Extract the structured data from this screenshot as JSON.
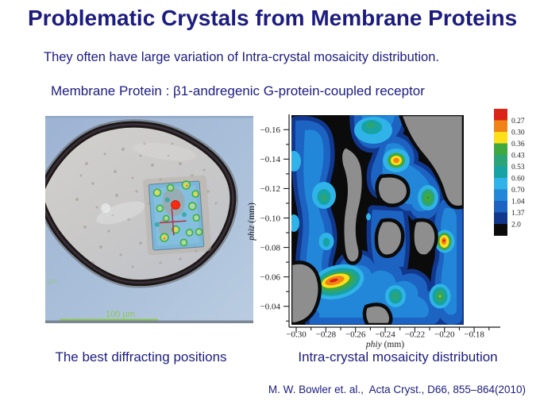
{
  "slide": {
    "title": "Problematic Crystals from Membrane Proteins",
    "subtitle": "They often have large variation of Intra-crystal mosaicity distribution.",
    "protein_line": "Membrane Protein : β1-andregenic G-protein-coupled receptor",
    "captions": {
      "left": "The best diffracting positions",
      "right": "Intra-crystal mosaicity distribution"
    },
    "citation": "M. W. Bowler et. al.,  Acta Cryst., D66, 855–864(2010)"
  },
  "photo": {
    "description": "Optical micrograph of a membrane-protein crystal mounted in a loop, overlaid with a diffraction heatmap, red beam marker and crosshair",
    "scale_bar_label": "100 µm"
  },
  "chart_data": {
    "type": "heatmap",
    "title": "Intra-crystal mosaicity distribution",
    "xlabel": "phiy (mm)",
    "ylabel": "phiz (mm)",
    "xlabel_var": "phiy",
    "xlabel_unit": " (mm)",
    "ylabel_var": "phiz",
    "ylabel_unit": " (mm)",
    "x_ticks": [
      "−0.30",
      "−0.28",
      "−0.26",
      "−0.24",
      "−0.22",
      "−0.20",
      "−0.18"
    ],
    "y_ticks": [
      "−0.16",
      "−0.14",
      "−0.12",
      "−0.10",
      "−0.08",
      "−0.06",
      "−0.04"
    ],
    "xlim": [
      -0.305,
      -0.188
    ],
    "ylim": [
      -0.171,
      -0.028
    ],
    "grid": false,
    "legend_position": "right",
    "legend_labels": [
      "0.27",
      "0.30",
      "0.36",
      "0.43",
      "0.53",
      "0.60",
      "0.70",
      "1.04",
      "1.37",
      "2.0"
    ],
    "legend_colors": [
      "#da2418",
      "#f08218",
      "#ffdf1a",
      "#3fa83f",
      "#2ba578",
      "#17a3a3",
      "#2fb3e8",
      "#2287d8",
      "#1c63c2",
      "#12388e",
      "#0b0b0b"
    ],
    "field_level_note": "bulk of crystal ~0.70–2.0 (blue shades), >2.0 black, gray = unmeasured",
    "hotspots": [
      {
        "phiy": -0.269,
        "phiz": -0.06,
        "approx_min_mosaicity": 0.27,
        "note": "best region, red/orange core"
      },
      {
        "phiy": -0.234,
        "phiz": -0.141,
        "approx_min_mosaicity": 0.29,
        "note": "orange core"
      },
      {
        "phiy": -0.201,
        "phiz": -0.085,
        "approx_min_mosaicity": 0.28,
        "note": "orange/red core"
      },
      {
        "phiy": -0.213,
        "phiz": -0.116,
        "approx_min_mosaicity": 0.4,
        "note": "green core"
      },
      {
        "phiy": -0.203,
        "phiz": -0.048,
        "approx_min_mosaicity": 0.4,
        "note": "green core"
      },
      {
        "phiy": -0.232,
        "phiz": -0.049,
        "approx_min_mosaicity": 0.48,
        "note": "teal core"
      },
      {
        "phiy": -0.252,
        "phiz": -0.163,
        "approx_min_mosaicity": 0.48,
        "note": "teal core at top edge"
      },
      {
        "phiy": -0.281,
        "phiz": -0.116,
        "approx_min_mosaicity": 0.55,
        "note": "teal core"
      },
      {
        "phiy": -0.28,
        "phiz": -0.085,
        "approx_min_mosaicity": 0.55,
        "note": "small teal core"
      }
    ]
  }
}
